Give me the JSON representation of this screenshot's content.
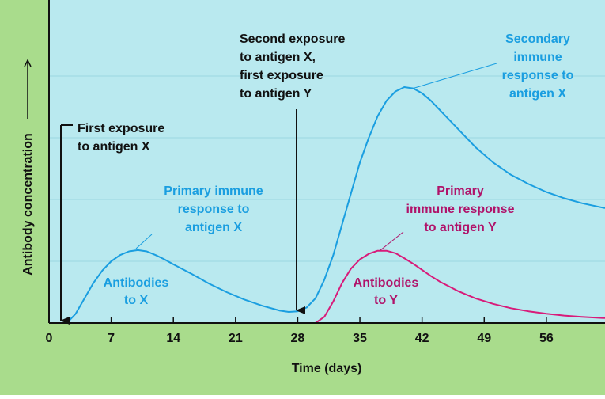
{
  "chart_data": {
    "type": "line",
    "x_label": "Time (days)",
    "y_label": "Antibody concentration",
    "x": [
      0,
      2,
      3,
      4,
      5,
      6,
      7,
      8,
      9,
      10,
      11,
      12,
      13,
      14,
      16,
      18,
      20,
      22,
      24,
      26,
      27,
      28,
      29,
      30,
      31,
      32,
      33,
      34,
      35,
      36,
      37,
      38,
      39,
      40,
      41,
      42,
      43,
      44,
      46,
      48,
      50,
      52,
      54,
      56,
      58,
      60,
      62.6
    ],
    "series": [
      {
        "name": "Antibodies to X",
        "color": "#1a9ee0",
        "values": [
          0,
          0,
          0.15,
          0.4,
          0.65,
          0.85,
          1.0,
          1.1,
          1.16,
          1.18,
          1.16,
          1.1,
          1.03,
          0.95,
          0.8,
          0.64,
          0.5,
          0.38,
          0.28,
          0.2,
          0.18,
          0.19,
          0.25,
          0.4,
          0.7,
          1.1,
          1.6,
          2.1,
          2.6,
          3.0,
          3.35,
          3.6,
          3.75,
          3.82,
          3.8,
          3.72,
          3.6,
          3.45,
          3.15,
          2.85,
          2.6,
          2.4,
          2.25,
          2.12,
          2.02,
          1.94,
          1.86
        ]
      },
      {
        "name": "Antibodies to Y",
        "color": "#d81b7a",
        "values": [
          null,
          null,
          null,
          null,
          null,
          null,
          null,
          null,
          null,
          null,
          null,
          null,
          null,
          null,
          null,
          null,
          null,
          null,
          null,
          null,
          null,
          null,
          null,
          0,
          0.1,
          0.35,
          0.65,
          0.88,
          1.03,
          1.12,
          1.17,
          1.17,
          1.13,
          1.05,
          0.96,
          0.86,
          0.76,
          0.67,
          0.52,
          0.4,
          0.31,
          0.24,
          0.19,
          0.15,
          0.12,
          0.1,
          0.08
        ]
      }
    ],
    "xlim": [
      0,
      62.6
    ],
    "xticks": [
      0,
      7,
      14,
      21,
      28,
      35,
      42,
      49,
      56
    ],
    "ylim": [
      0,
      5.23
    ],
    "yticks": [
      1,
      2,
      3,
      4
    ],
    "grid": true,
    "annotations": {
      "first_exposure": [
        "First exposure",
        "to antigen X"
      ],
      "second_exposure": [
        "Second exposure",
        "to antigen X,",
        "first exposure",
        "to antigen Y"
      ],
      "primary_x": [
        "Primary immune",
        "response to",
        "antigen X"
      ],
      "secondary_x": [
        "Secondary",
        "immune",
        "response to",
        "antigen X"
      ],
      "primary_y": [
        "Primary",
        "immune response",
        "to antigen Y"
      ]
    }
  }
}
